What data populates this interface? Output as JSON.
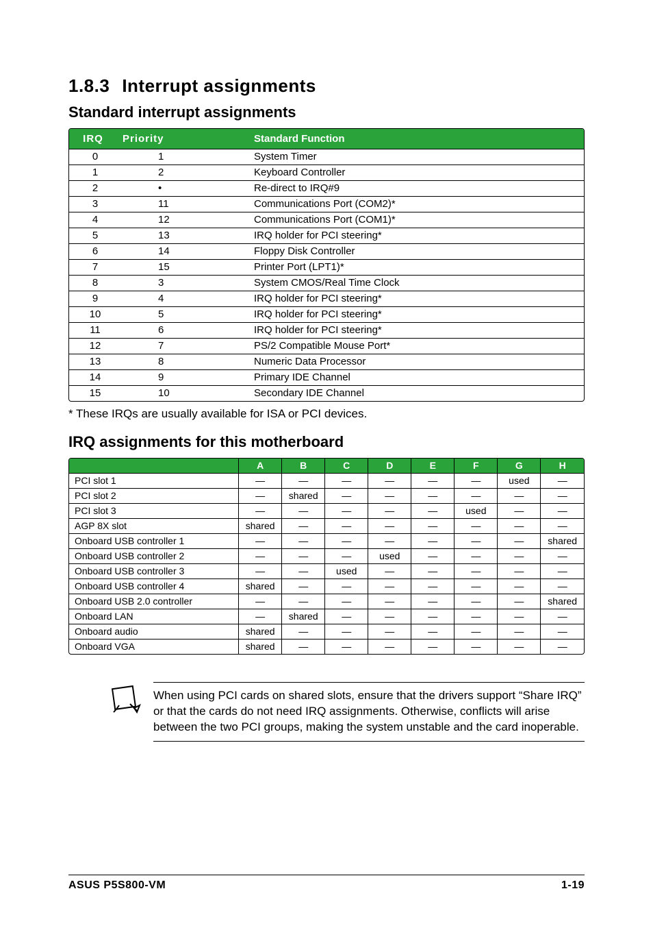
{
  "section": {
    "number": "1.8.3",
    "title": "Interrupt assignments"
  },
  "sub1": "Standard interrupt assignments",
  "table1": {
    "header_bg": "#2aa33a",
    "header_fg": "#ffffff",
    "columns": [
      "IRQ",
      "Priority",
      "Standard Function"
    ],
    "rows": [
      [
        "0",
        "1",
        "System Timer"
      ],
      [
        "1",
        "2",
        "Keyboard Controller"
      ],
      [
        "2",
        "•",
        "Re-direct to IRQ#9"
      ],
      [
        "3",
        "11",
        "Communications Port (COM2)*"
      ],
      [
        "4",
        "12",
        "Communications Port (COM1)*"
      ],
      [
        "5",
        "13",
        "IRQ holder for PCI steering*"
      ],
      [
        "6",
        "14",
        "Floppy Disk Controller"
      ],
      [
        "7",
        "15",
        "Printer Port (LPT1)*"
      ],
      [
        "8",
        "3",
        "System CMOS/Real Time Clock"
      ],
      [
        "9",
        "4",
        "IRQ holder for PCI steering*"
      ],
      [
        "10",
        "5",
        "IRQ holder for PCI steering*"
      ],
      [
        "11",
        "6",
        "IRQ holder for PCI steering*"
      ],
      [
        "12",
        "7",
        "PS/2 Compatible Mouse Port*"
      ],
      [
        "13",
        "8",
        "Numeric Data Processor"
      ],
      [
        "14",
        "9",
        "Primary IDE Channel"
      ],
      [
        "15",
        "10",
        "Secondary IDE Channel"
      ]
    ]
  },
  "footnote": "* These IRQs are usually available for ISA or PCI devices.",
  "sub2": "IRQ assignments for this motherboard",
  "table2": {
    "header_bg": "#2aa33a",
    "header_fg": "#ffffff",
    "columns": [
      "",
      "A",
      "B",
      "C",
      "D",
      "E",
      "F",
      "G",
      "H"
    ],
    "rows": [
      [
        "PCI slot 1",
        "—",
        "—",
        "—",
        "—",
        "—",
        "—",
        "used",
        "—"
      ],
      [
        "PCI slot 2",
        "—",
        "shared",
        "—",
        "—",
        "—",
        "—",
        "—",
        "—"
      ],
      [
        "PCI slot 3",
        "—",
        "—",
        "—",
        "—",
        "—",
        "used",
        "—",
        "—"
      ],
      [
        "AGP 8X slot",
        "shared",
        "—",
        "—",
        "—",
        "—",
        "—",
        "—",
        "—"
      ],
      [
        "Onboard USB controller 1",
        "—",
        "—",
        "—",
        "—",
        "—",
        "—",
        "—",
        "shared"
      ],
      [
        "Onboard USB controller 2",
        "—",
        "—",
        "—",
        "used",
        "—",
        "—",
        "—",
        "—"
      ],
      [
        "Onboard USB controller 3",
        "—",
        "—",
        "used",
        "—",
        "—",
        "—",
        "—",
        "—"
      ],
      [
        "Onboard USB controller 4",
        "shared",
        "—",
        "—",
        "—",
        "—",
        "—",
        "—",
        "—"
      ],
      [
        "Onboard USB 2.0 controller",
        "—",
        "—",
        "—",
        "—",
        "—",
        "—",
        "—",
        "shared"
      ],
      [
        "Onboard LAN",
        "—",
        "shared",
        "—",
        "—",
        "—",
        "—",
        "—",
        "—"
      ],
      [
        "Onboard audio",
        "shared",
        "—",
        "—",
        "—",
        "—",
        "—",
        "—",
        "—"
      ],
      [
        "Onboard VGA",
        "shared",
        "—",
        "—",
        "—",
        "—",
        "—",
        "—",
        "—"
      ]
    ]
  },
  "note": "When using PCI cards on shared slots, ensure that the drivers support “Share IRQ” or that the cards do not need IRQ assignments. Otherwise, conflicts will arise between the two PCI groups, making the system unstable and the card inoperable.",
  "footer": {
    "left": "ASUS P5S800-VM",
    "right": "1-19"
  }
}
